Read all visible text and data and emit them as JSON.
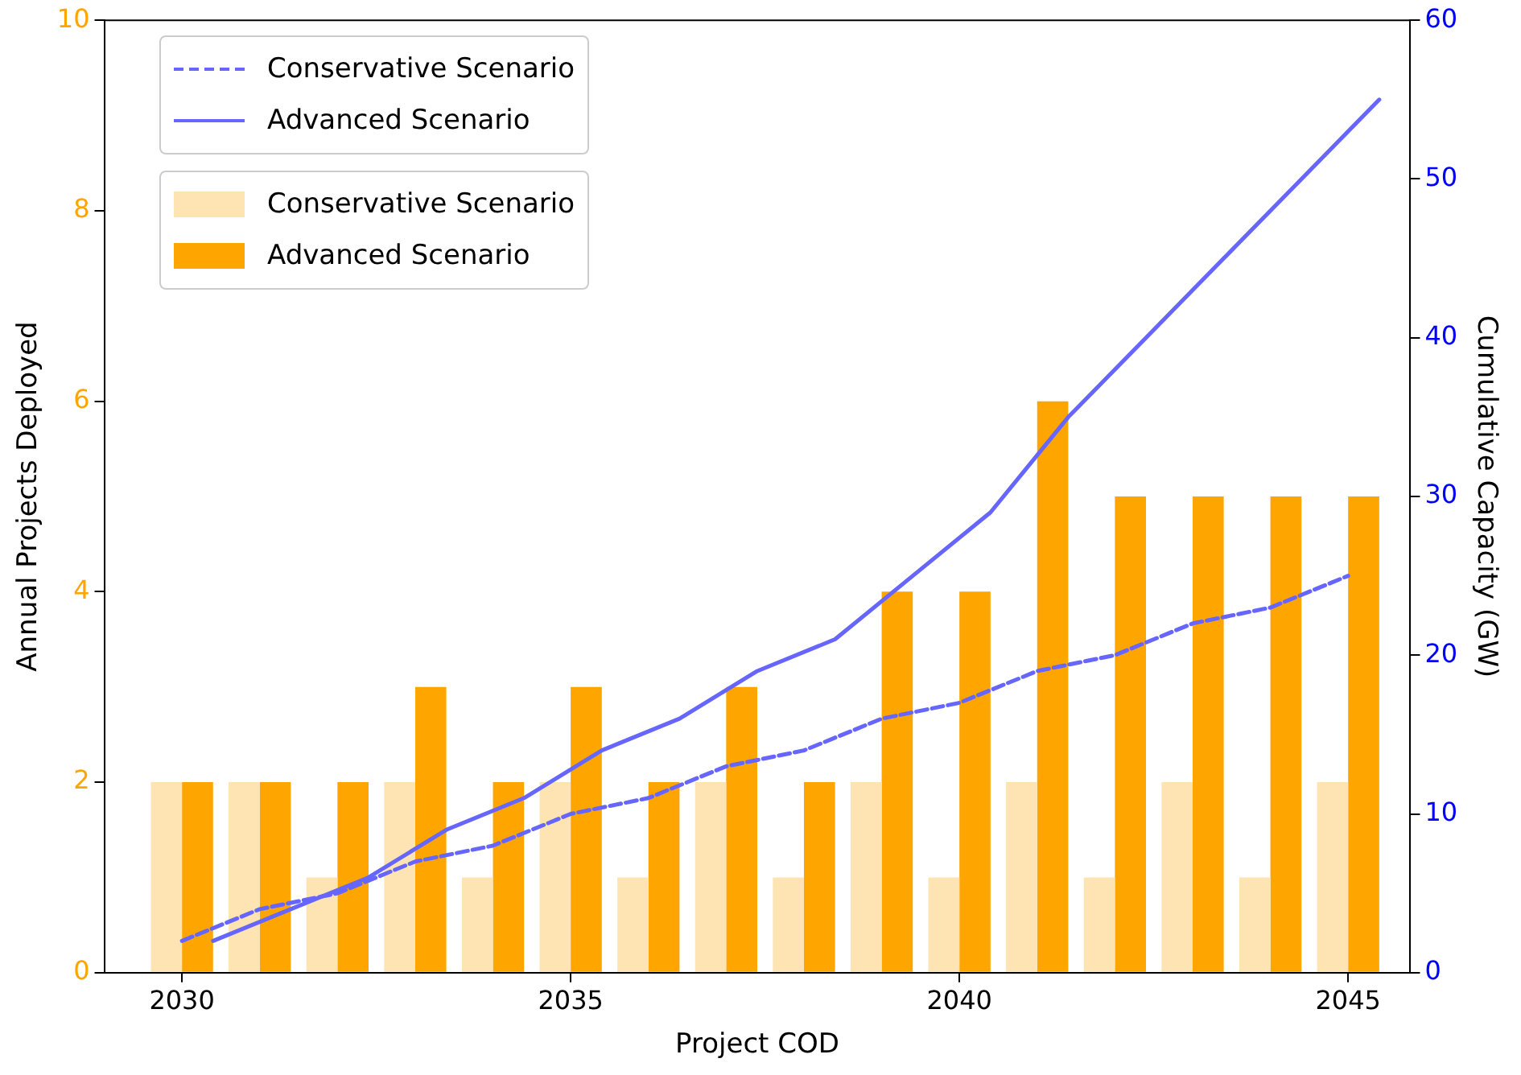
{
  "chart_data": {
    "type": "bar",
    "xlabel": "Project COD",
    "ylabel": "Annual Projects Deployed",
    "y2label": "Cumulative Capacity (GW)",
    "x": [
      2030,
      2031,
      2032,
      2033,
      2034,
      2035,
      2036,
      2037,
      2038,
      2039,
      2040,
      2041,
      2042,
      2043,
      2044,
      2045
    ],
    "series": [
      {
        "name": "Conservative Scenario",
        "type": "line",
        "axis": "y2",
        "line_style": "dashed",
        "color": "#6666ff",
        "x": [
          2030,
          2031,
          2032,
          2033,
          2034,
          2035,
          2036,
          2037,
          2038,
          2039,
          2040,
          2041,
          2042,
          2043,
          2044,
          2045
        ],
        "values": [
          2,
          4,
          5,
          7,
          8,
          10,
          11,
          13,
          14,
          16,
          17,
          19,
          20,
          22,
          23,
          25
        ]
      },
      {
        "name": "Advanced Scenario",
        "type": "line",
        "axis": "y2",
        "line_style": "solid",
        "color": "#6666ff",
        "x": [
          2030.4,
          2031.4,
          2032.4,
          2033.4,
          2034.4,
          2035.4,
          2036.4,
          2037.4,
          2038.4,
          2039.4,
          2040.4,
          2041.4,
          2042.4,
          2043.4,
          2044.4,
          2045.4
        ],
        "values": [
          2,
          4,
          6,
          9,
          11,
          14,
          16,
          19,
          21,
          25,
          29,
          35,
          40,
          45,
          50,
          55
        ]
      },
      {
        "name": "Conservative Scenario",
        "color": "#ffe4b3",
        "values": [
          2,
          2,
          1,
          2,
          1,
          2,
          1,
          2,
          1,
          2,
          1,
          2,
          1,
          2,
          1,
          2
        ]
      },
      {
        "name": "Advanced Scenario",
        "color": "#ffa500",
        "values": [
          2,
          2,
          2,
          3,
          2,
          3,
          2,
          3,
          2,
          4,
          4,
          6,
          5,
          5,
          5,
          5
        ]
      }
    ],
    "xlim": [
      2029,
      2045.8
    ],
    "xticks": [
      2030,
      2035,
      2040,
      2045
    ],
    "ylim": [
      0,
      10
    ],
    "yticks": [
      0,
      2,
      4,
      6,
      8,
      10
    ],
    "y2lim": [
      0,
      60
    ],
    "y2ticks": [
      0,
      10,
      20,
      30,
      40,
      50,
      60
    ],
    "grid": false,
    "legend": "top left"
  }
}
